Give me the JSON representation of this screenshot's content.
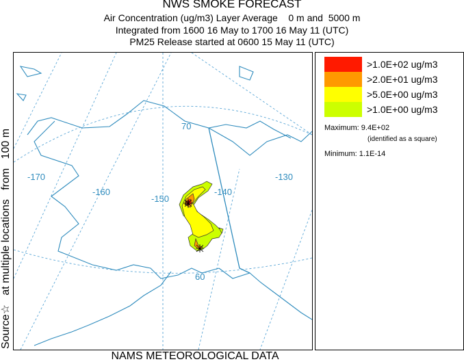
{
  "header": {
    "title": "NWS SMOKE FORECAST",
    "line1": "Air Concentration (ug/m3) Layer Average    0 m and  5000 m",
    "line2": "Integrated from 1600 16 May to 1700 16 May 11 (UTC)",
    "line3": "PM25 Release started at 0600 15 May 11 (UTC)"
  },
  "side_label": "Source☆   at multiple locations   from   100 m",
  "footer": "NAMS METEOROLOGICAL DATA",
  "map": {
    "grid_labels": {
      "lon_m170": "-170",
      "lon_m160": "-160",
      "lon_m150": "-150",
      "lon_m140": "-140",
      "lon_m130": "-130",
      "lat_70": "70",
      "lat_60": "60"
    },
    "colors": {
      "coast": "#2e8bbd",
      "grid": "#5aa6d6"
    }
  },
  "legend": {
    "items": [
      {
        "label": ">1.0E+02 ug/m3",
        "color": "#ff1a00"
      },
      {
        "label": ">2.0E+01 ug/m3",
        "color": "#ff9900"
      },
      {
        "label": ">5.0E+00 ug/m3",
        "color": "#ffff00"
      },
      {
        "label": ">1.0E+00 ug/m3",
        "color": "#ccff00"
      }
    ],
    "maximum_label": "Maximum:",
    "maximum_value": "9.4E+02",
    "maximum_note": "(identified as a square)",
    "minimum_label": "Minimum:",
    "minimum_value": "1.1E-14"
  }
}
